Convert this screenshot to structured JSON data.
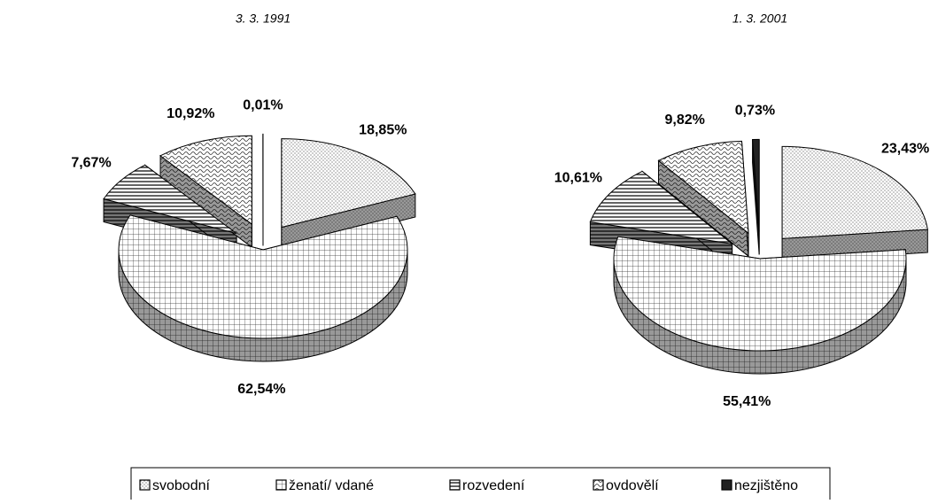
{
  "chart_data": [
    {
      "type": "pie",
      "title": "3. 3. 1991",
      "categories": [
        "svobodní",
        "ženatí/ vdané",
        "rozvedení",
        "ovdovělí",
        "nezjištěno"
      ],
      "values": [
        18.85,
        62.54,
        7.67,
        10.92,
        0.01
      ],
      "value_labels": [
        "18,85%",
        "62,54%",
        "7,67%",
        "10,92%",
        "0,01%"
      ]
    },
    {
      "type": "pie",
      "title": "1. 3. 2001",
      "categories": [
        "svobodní",
        "ženatí/ vdané",
        "rozvedení",
        "ovdovělí",
        "nezjištěno"
      ],
      "values": [
        23.43,
        55.41,
        10.61,
        9.82,
        0.73
      ],
      "value_labels": [
        "23,43%",
        "55,41%",
        "10,61%",
        "9,82%",
        "0,73%"
      ]
    }
  ]
}
